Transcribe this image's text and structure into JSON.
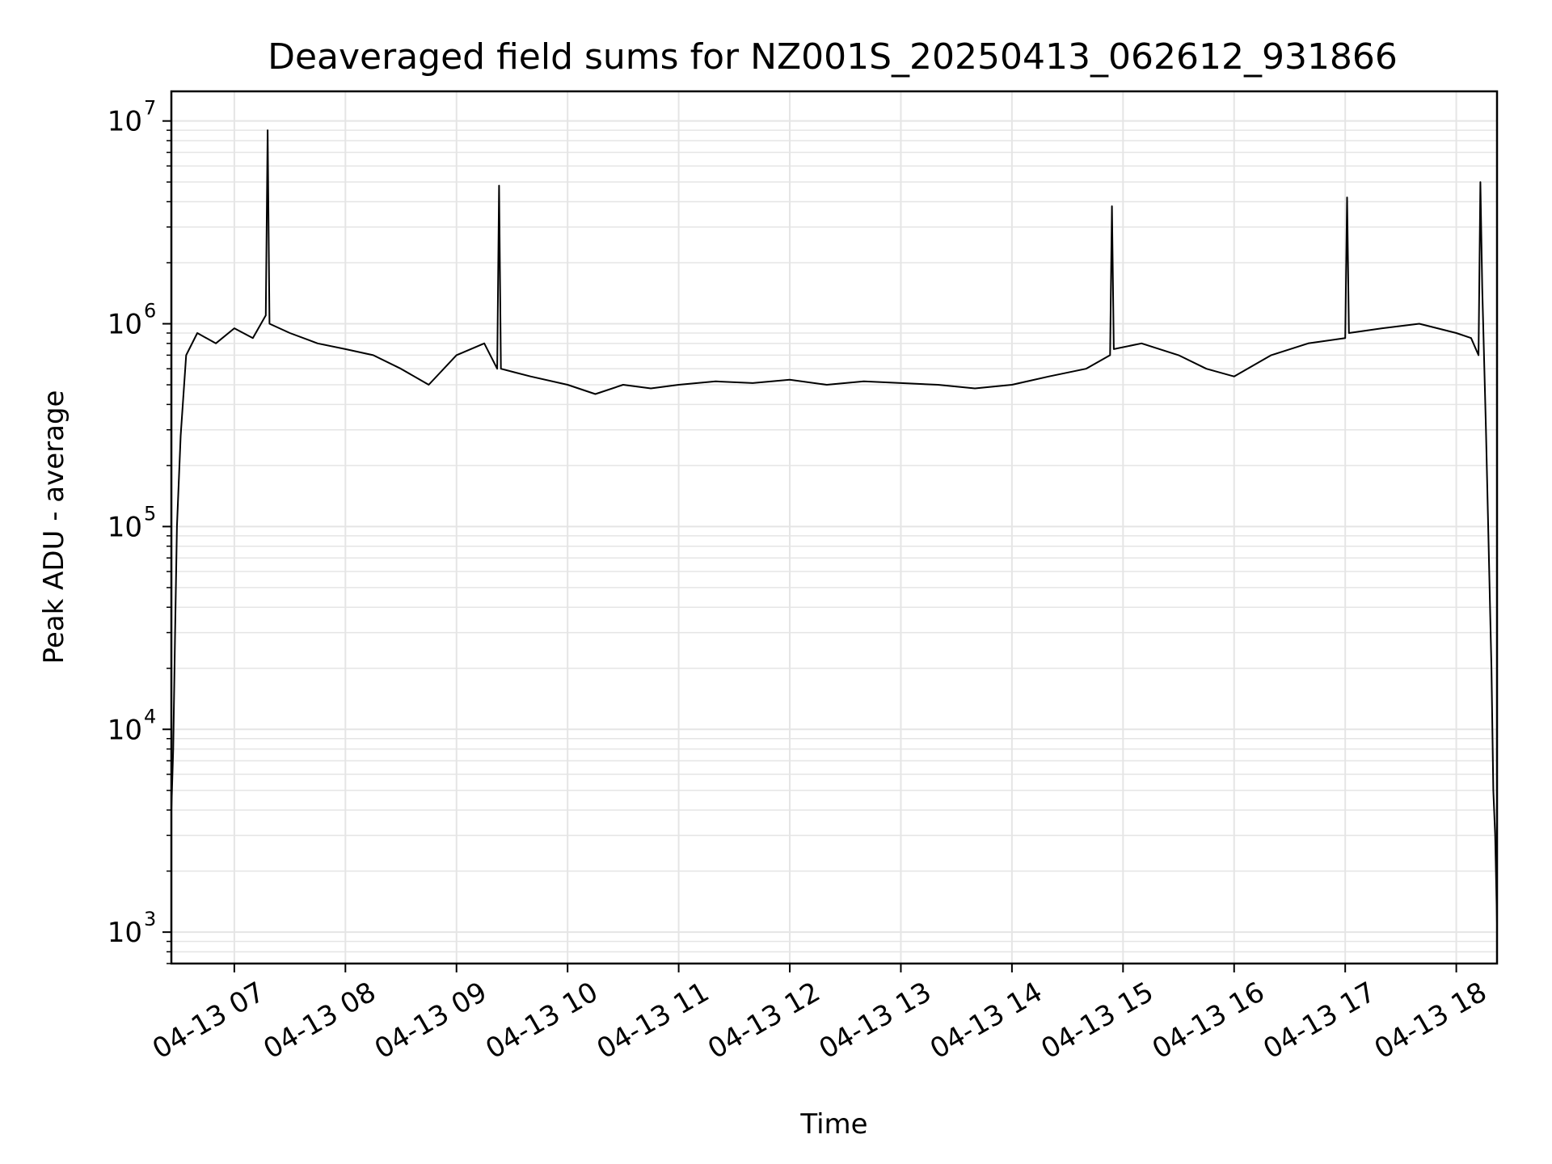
{
  "chart_data": {
    "type": "line",
    "title": "Deaveraged field sums for NZ001S_20250413_062612_931866",
    "xlabel": "Time",
    "ylabel": "Peak ADU - average",
    "y_scale": "log",
    "ylim": [
      700,
      14000000
    ],
    "xlim": [
      "2025-04-13 06:26",
      "2025-04-13 18:22"
    ],
    "grid": true,
    "line_color": "#000000",
    "grid_color": "#e5e5e5",
    "x_ticks": [
      {
        "value": "2025-04-13 07:00",
        "label": "04-13 07"
      },
      {
        "value": "2025-04-13 08:00",
        "label": "04-13 08"
      },
      {
        "value": "2025-04-13 09:00",
        "label": "04-13 09"
      },
      {
        "value": "2025-04-13 10:00",
        "label": "04-13 10"
      },
      {
        "value": "2025-04-13 11:00",
        "label": "04-13 11"
      },
      {
        "value": "2025-04-13 12:00",
        "label": "04-13 12"
      },
      {
        "value": "2025-04-13 13:00",
        "label": "04-13 13"
      },
      {
        "value": "2025-04-13 14:00",
        "label": "04-13 14"
      },
      {
        "value": "2025-04-13 15:00",
        "label": "04-13 15"
      },
      {
        "value": "2025-04-13 16:00",
        "label": "04-13 16"
      },
      {
        "value": "2025-04-13 17:00",
        "label": "04-13 17"
      },
      {
        "value": "2025-04-13 18:00",
        "label": "04-13 18"
      }
    ],
    "y_ticks": [
      {
        "value": 1000,
        "base": "10",
        "exp": "3"
      },
      {
        "value": 10000,
        "base": "10",
        "exp": "4"
      },
      {
        "value": 100000,
        "base": "10",
        "exp": "5"
      },
      {
        "value": 1000000,
        "base": "10",
        "exp": "6"
      },
      {
        "value": 10000000,
        "base": "10",
        "exp": "7"
      }
    ],
    "series": [
      {
        "x": [
          "2025-04-13 06:26",
          "2025-04-13 06:27",
          "2025-04-13 06:28",
          "2025-04-13 06:29",
          "2025-04-13 06:31",
          "2025-04-13 06:34",
          "2025-04-13 06:40",
          "2025-04-13 06:50",
          "2025-04-13 07:00",
          "2025-04-13 07:10",
          "2025-04-13 07:17",
          "2025-04-13 07:18",
          "2025-04-13 07:19",
          "2025-04-13 07:30",
          "2025-04-13 07:45",
          "2025-04-13 08:00",
          "2025-04-13 08:15",
          "2025-04-13 08:30",
          "2025-04-13 08:45",
          "2025-04-13 09:00",
          "2025-04-13 09:15",
          "2025-04-13 09:22",
          "2025-04-13 09:23",
          "2025-04-13 09:24",
          "2025-04-13 09:40",
          "2025-04-13 10:00",
          "2025-04-13 10:15",
          "2025-04-13 10:30",
          "2025-04-13 10:45",
          "2025-04-13 11:00",
          "2025-04-13 11:20",
          "2025-04-13 11:40",
          "2025-04-13 12:00",
          "2025-04-13 12:20",
          "2025-04-13 12:40",
          "2025-04-13 13:00",
          "2025-04-13 13:20",
          "2025-04-13 13:40",
          "2025-04-13 14:00",
          "2025-04-13 14:20",
          "2025-04-13 14:40",
          "2025-04-13 14:53",
          "2025-04-13 14:54",
          "2025-04-13 14:55",
          "2025-04-13 15:10",
          "2025-04-13 15:30",
          "2025-04-13 15:45",
          "2025-04-13 16:00",
          "2025-04-13 16:20",
          "2025-04-13 16:40",
          "2025-04-13 17:00",
          "2025-04-13 17:01",
          "2025-04-13 17:02",
          "2025-04-13 17:20",
          "2025-04-13 17:40",
          "2025-04-13 18:00",
          "2025-04-13 18:08",
          "2025-04-13 18:12",
          "2025-04-13 18:13",
          "2025-04-13 18:14",
          "2025-04-13 18:16",
          "2025-04-13 18:18",
          "2025-04-13 18:19",
          "2025-04-13 18:20",
          "2025-04-13 18:21",
          "2025-04-13 18:22"
        ],
        "values": [
          4000,
          8000,
          30000,
          100000,
          280000,
          700000,
          900000,
          800000,
          950000,
          850000,
          1100000,
          9000000,
          1000000,
          900000,
          800000,
          750000,
          700000,
          600000,
          500000,
          700000,
          800000,
          600000,
          4800000,
          600000,
          550000,
          500000,
          450000,
          500000,
          480000,
          500000,
          520000,
          510000,
          530000,
          500000,
          520000,
          510000,
          500000,
          480000,
          500000,
          550000,
          600000,
          700000,
          3800000,
          750000,
          800000,
          700000,
          600000,
          550000,
          700000,
          800000,
          850000,
          4200000,
          900000,
          950000,
          1000000,
          900000,
          850000,
          700000,
          5000000,
          1500000,
          300000,
          50000,
          20000,
          5000,
          3000,
          1100
        ]
      }
    ]
  }
}
